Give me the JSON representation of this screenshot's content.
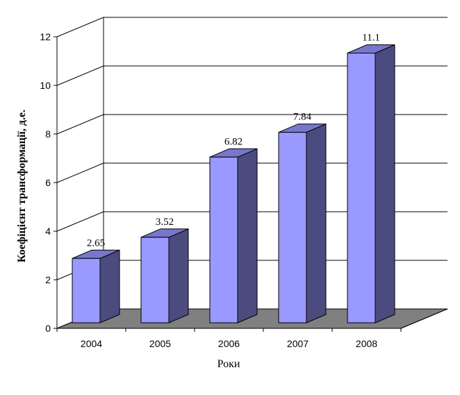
{
  "chart_data": {
    "type": "bar",
    "style": "3d-column",
    "categories": [
      "2004",
      "2005",
      "2006",
      "2007",
      "2008"
    ],
    "values": [
      2.65,
      3.52,
      6.82,
      7.84,
      11.1
    ],
    "data_labels": [
      "2.65",
      "3.52",
      "6.82",
      "7.84",
      "11.1"
    ],
    "xlabel": "Роки",
    "ylabel": "Коефіцієнт трансформації, д.е.",
    "ylim": [
      0,
      12
    ],
    "yticks": [
      "0",
      "2",
      "4",
      "6",
      "8",
      "10",
      "12"
    ],
    "grid": true,
    "legend": "none",
    "colors": {
      "bar_front": "#9999ff",
      "bar_side": "#4b4b80",
      "bar_top": "#7777cc",
      "floor": "#808080",
      "grid": "#000000"
    }
  }
}
